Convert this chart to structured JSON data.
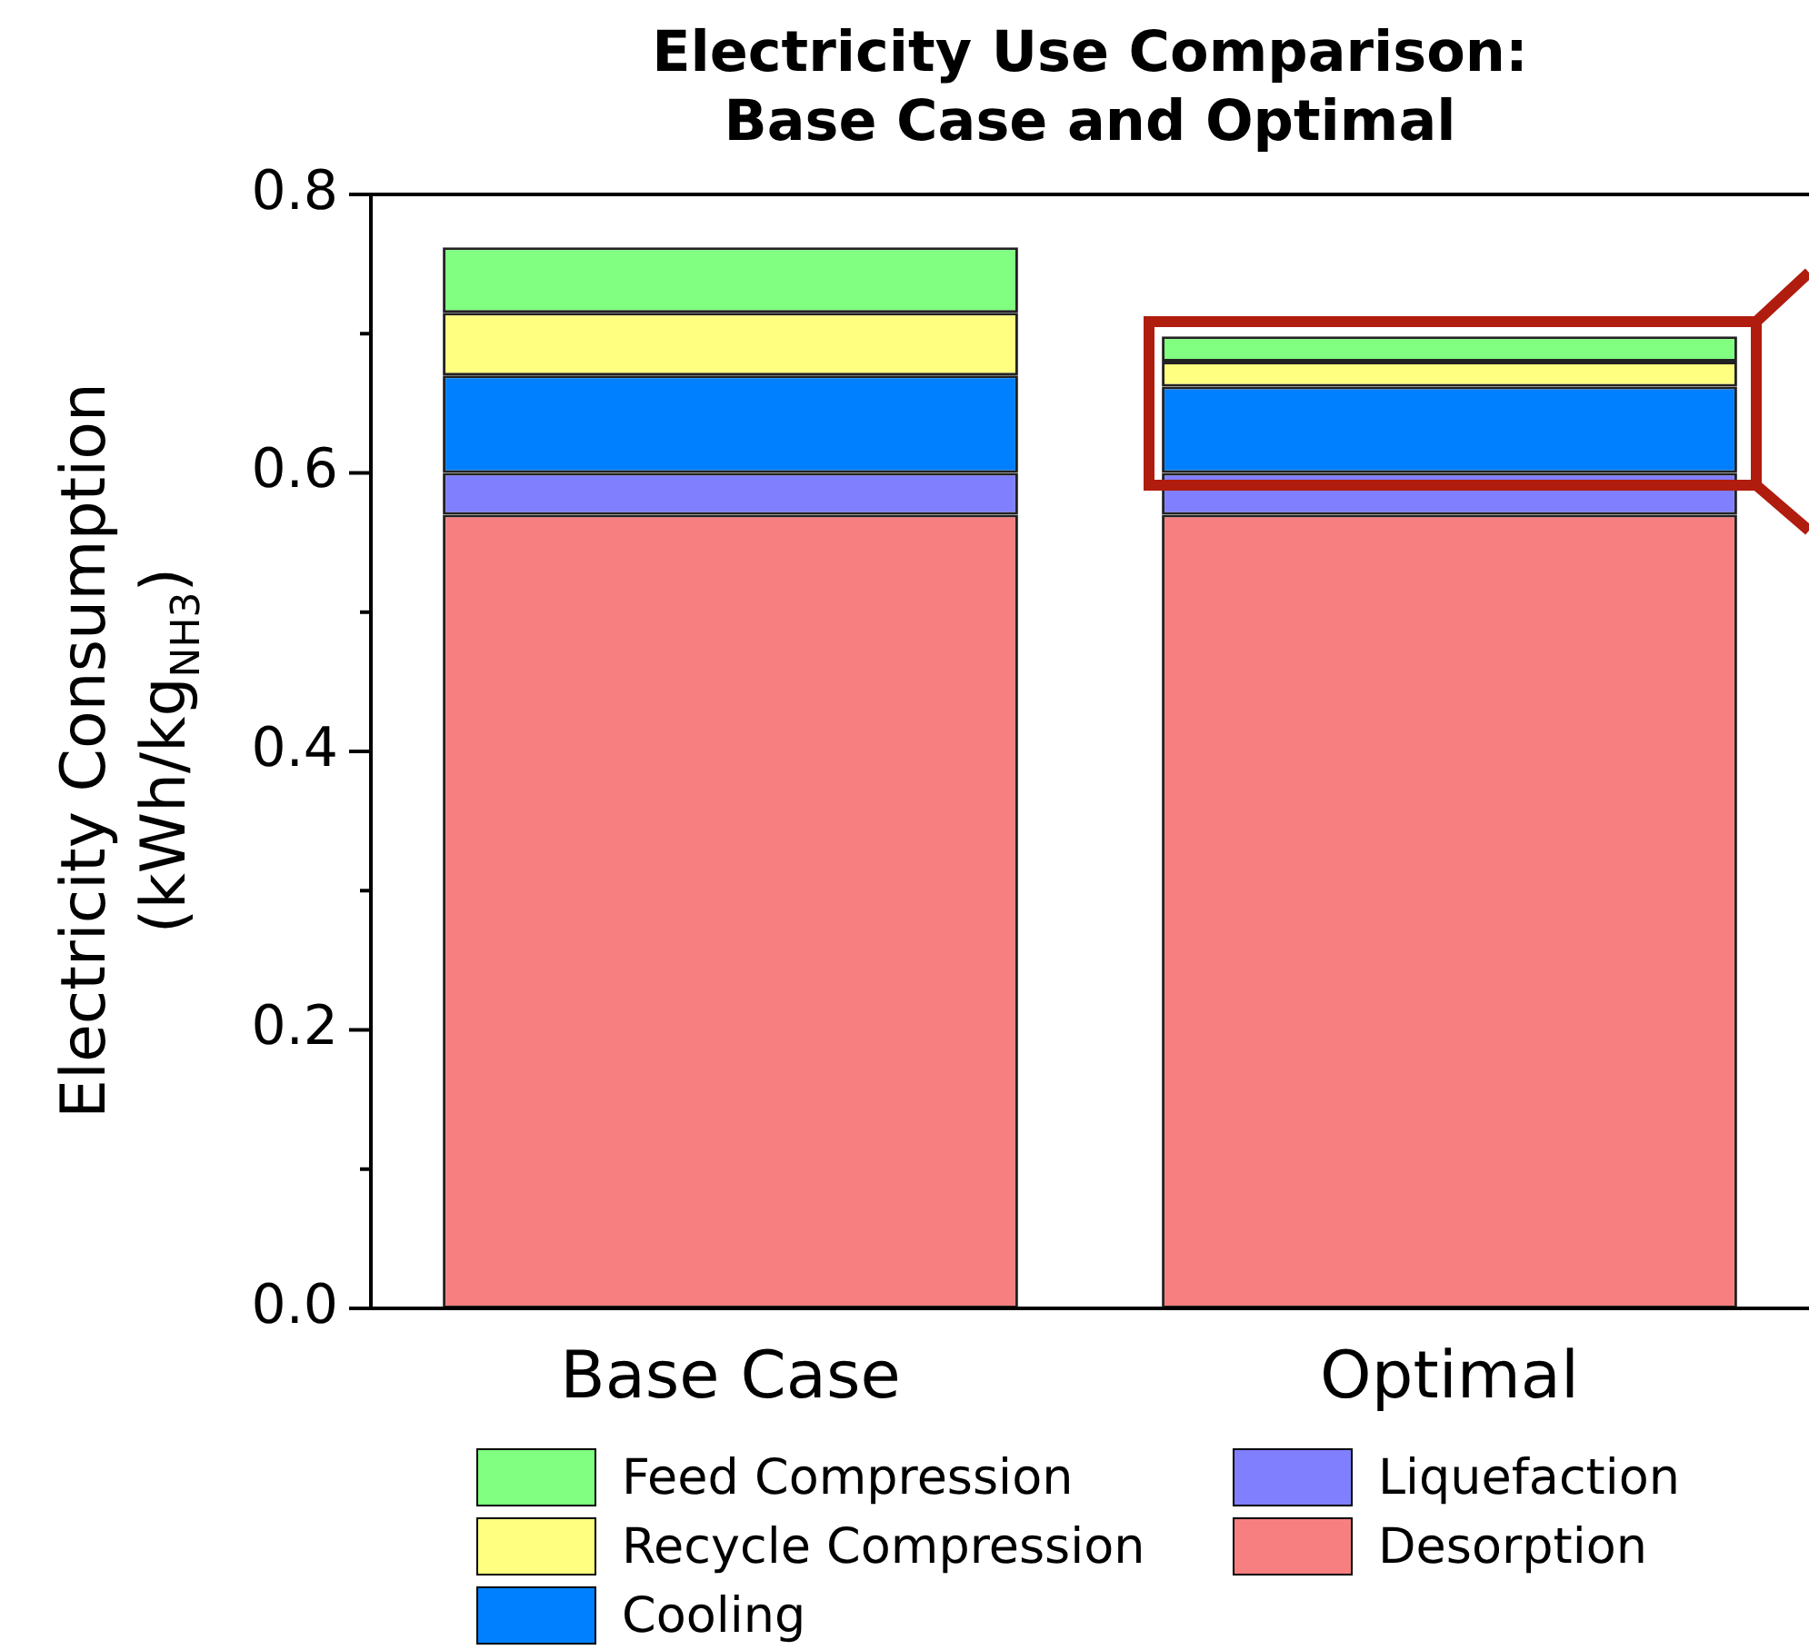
{
  "chart_data": {
    "type": "bar",
    "title": "Electricity Use Comparison:\nBase Case and Optimal",
    "ylabel": "Electricity Consumption\n(kWh/kg$_{NH3}$)",
    "categories": [
      "Base Case",
      "Optimal"
    ],
    "stacked": true,
    "legend": "bottom",
    "grid": false,
    "series": [
      {
        "name": "Desorption",
        "color": "#f87f7f",
        "values": [
          0.57,
          0.57
        ]
      },
      {
        "name": "Liquefaction",
        "color": "#8080ff",
        "values": [
          0.03,
          0.03
        ]
      },
      {
        "name": "Cooling",
        "color": "#0080ff",
        "values": [
          0.07,
          0.062
        ]
      },
      {
        "name": "Recycle Compression",
        "color": "#ffff80",
        "values": [
          0.045,
          0.018
        ]
      },
      {
        "name": "Feed Compression",
        "color": "#80ff80",
        "values": [
          0.047,
          0.018
        ]
      }
    ],
    "ylim": [
      0,
      0.8
    ],
    "yticks": [
      {
        "value": 0,
        "label": "0.0"
      },
      {
        "value": 0.1,
        "label": null
      },
      0.2,
      {
        "value": 0.3,
        "label": null
      },
      0.4,
      {
        "value": 0.5,
        "label": null
      },
      0.6,
      {
        "value": 0.7,
        "label": null
      },
      0.8
    ]
  }
}
